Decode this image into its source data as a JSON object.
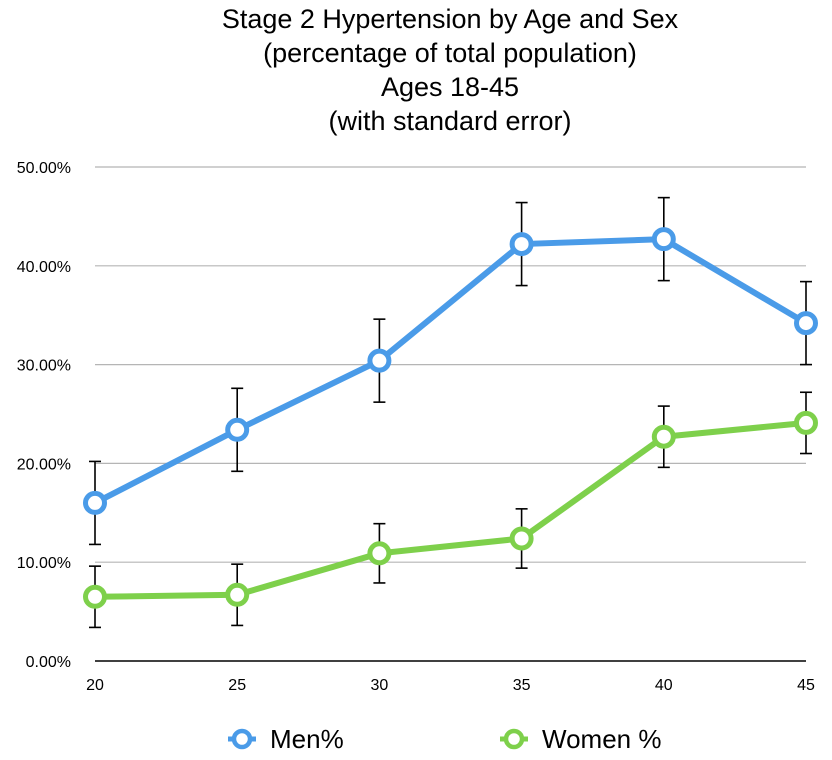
{
  "chart_data": {
    "type": "line",
    "title_lines": [
      "Stage 2 Hypertension by Age and Sex",
      "(percentage of total population)",
      "Ages 18-45",
      "(with standard error)"
    ],
    "x": [
      20,
      25,
      30,
      35,
      40,
      45
    ],
    "x_tick_labels": [
      "20",
      "25",
      "30",
      "35",
      "40",
      "45"
    ],
    "y_tick_labels": [
      "0.00%",
      "10.00%",
      "20.00%",
      "30.00%",
      "40.00%",
      "50.00%"
    ],
    "ylim": [
      0,
      50
    ],
    "y_unit": "%",
    "grid": true,
    "legend_position": "bottom",
    "series": [
      {
        "name": "Men%",
        "color": "#4a9be8",
        "values": [
          16.0,
          23.4,
          30.4,
          42.2,
          42.7,
          34.2
        ],
        "error": [
          4.2,
          4.2,
          4.2,
          4.2,
          4.2,
          4.2
        ]
      },
      {
        "name": "Women %",
        "color": "#7ed04b",
        "values": [
          6.5,
          6.7,
          10.9,
          12.4,
          22.7,
          24.1
        ],
        "error": [
          3.1,
          3.1,
          3.0,
          3.0,
          3.1,
          3.1
        ]
      }
    ]
  }
}
